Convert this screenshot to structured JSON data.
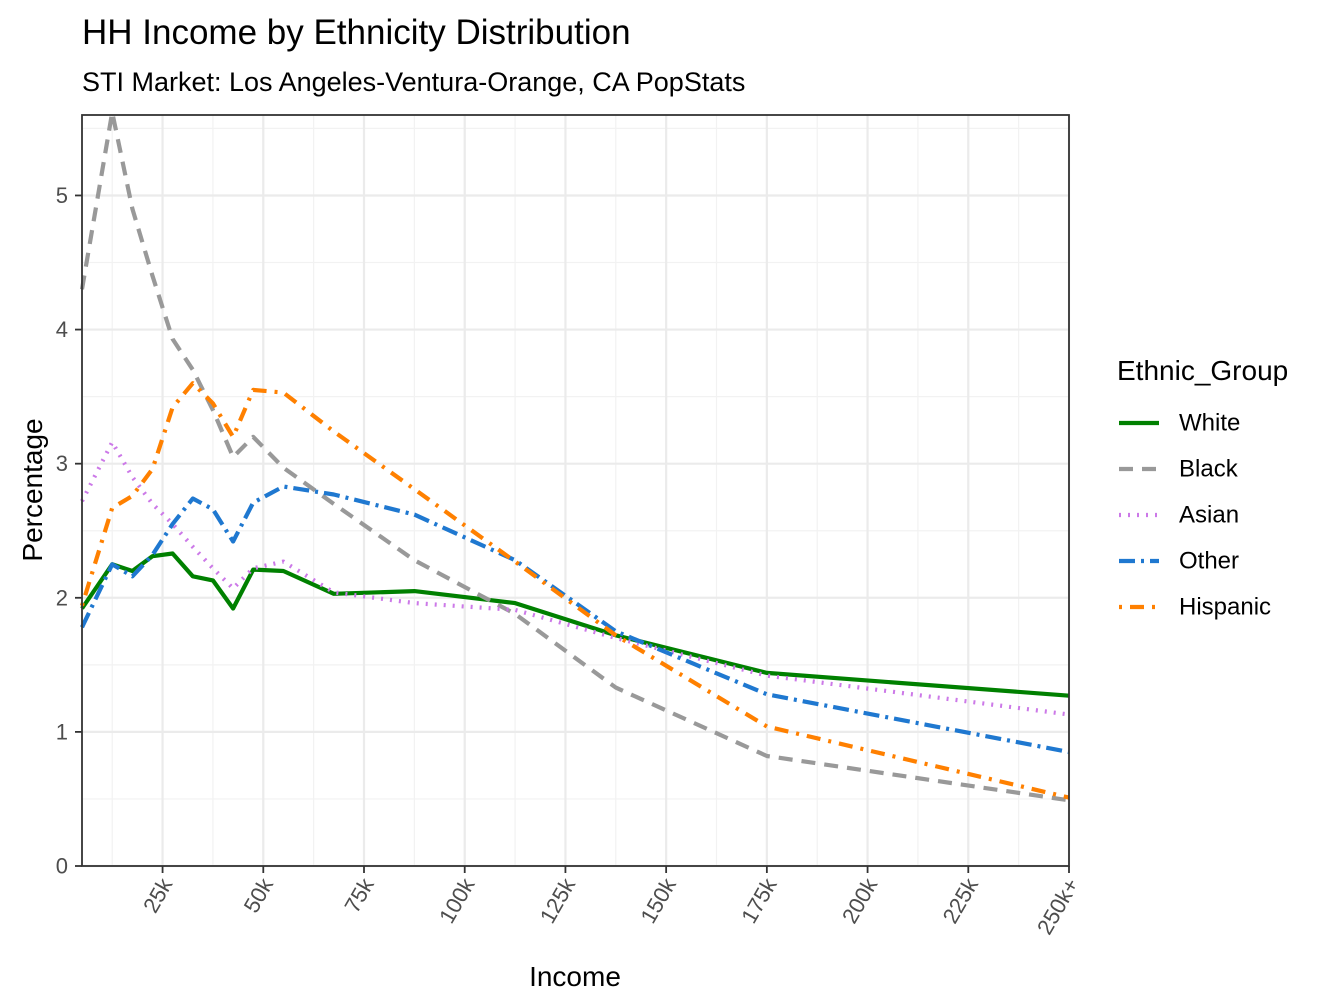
{
  "chart_data": {
    "type": "line",
    "title": "HH Income by Ethnicity Distribution",
    "subtitle": "STI Market: Los Angeles-Ventura-Orange, CA PopStats",
    "xlabel": "Income",
    "ylabel": "Percentage",
    "xlim": [
      5,
      250
    ],
    "ylim": [
      0,
      5.6
    ],
    "x_ticks": [
      25,
      50,
      75,
      100,
      125,
      150,
      175,
      200,
      225,
      250
    ],
    "x_tick_labels": [
      "25k",
      "50k",
      "75k",
      "100k",
      "125k",
      "150k",
      "175k",
      "200k",
      "225k",
      "250k+"
    ],
    "y_ticks": [
      0,
      1,
      2,
      3,
      4,
      5
    ],
    "y_tick_labels": [
      "0",
      "1",
      "2",
      "3",
      "4",
      "5"
    ],
    "grid": true,
    "legend_title": "Ethnic_Group",
    "legend_position": "right",
    "x": [
      5,
      12.5,
      17.5,
      22.5,
      27.5,
      32.5,
      37.5,
      42.5,
      47.5,
      55,
      67.5,
      87.5,
      112.5,
      137.5,
      175,
      250
    ],
    "series": [
      {
        "name": "White",
        "color": "#008000",
        "dash": "solid",
        "values": [
          1.92,
          2.25,
          2.2,
          2.31,
          2.33,
          2.16,
          2.13,
          1.92,
          2.21,
          2.2,
          2.03,
          2.05,
          1.96,
          1.72,
          1.44,
          1.27
        ]
      },
      {
        "name": "Black",
        "color": "#999999",
        "dash": "dashed",
        "values": [
          4.3,
          5.62,
          4.9,
          4.4,
          3.93,
          3.7,
          3.4,
          3.05,
          3.2,
          2.97,
          2.7,
          2.28,
          1.88,
          1.33,
          0.82,
          0.49
        ]
      },
      {
        "name": "Asian",
        "color": "#cc79e8",
        "dash": "dotted",
        "values": [
          2.72,
          3.16,
          2.9,
          2.7,
          2.55,
          2.38,
          2.22,
          2.07,
          2.22,
          2.27,
          2.04,
          1.96,
          1.91,
          1.7,
          1.42,
          1.13
        ]
      },
      {
        "name": "Other",
        "color": "#1f78d0",
        "dash": "dashdot",
        "values": [
          1.78,
          2.25,
          2.16,
          2.32,
          2.55,
          2.74,
          2.66,
          2.42,
          2.71,
          2.83,
          2.77,
          2.62,
          2.28,
          1.75,
          1.28,
          0.85
        ]
      },
      {
        "name": "Hispanic",
        "color": "#ff8000",
        "dash": "dotdash",
        "values": [
          1.94,
          2.67,
          2.76,
          2.96,
          3.42,
          3.6,
          3.45,
          3.2,
          3.55,
          3.53,
          3.24,
          2.81,
          2.27,
          1.72,
          1.04,
          0.51
        ]
      }
    ]
  }
}
